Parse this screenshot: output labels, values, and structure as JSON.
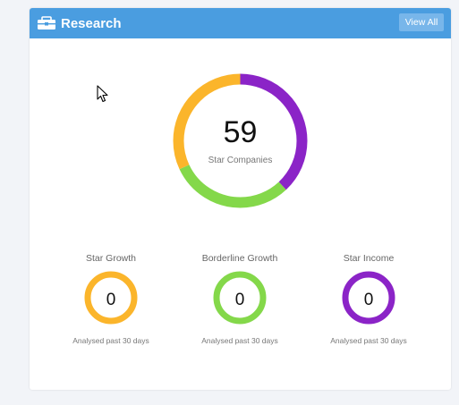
{
  "header": {
    "title": "Research",
    "view_all_label": "View All",
    "icon": "toolbox-icon",
    "background_color": "#4a9de0"
  },
  "summary": {
    "count": "59",
    "label": "Star Companies",
    "segments": [
      {
        "name": "Star Income",
        "color": "#8b24c7",
        "fraction": 0.38
      },
      {
        "name": "Borderline Growth",
        "color": "#84d84a",
        "fraction": 0.3
      },
      {
        "name": "Star Growth",
        "color": "#fbb52b",
        "fraction": 0.32
      }
    ]
  },
  "metrics": [
    {
      "title": "Star Growth",
      "value": "0",
      "subtitle": "Analysed past 30 days",
      "color": "#fbb52b"
    },
    {
      "title": "Borderline Growth",
      "value": "0",
      "subtitle": "Analysed past 30 days",
      "color": "#84d84a"
    },
    {
      "title": "Star Income",
      "value": "0",
      "subtitle": "Analysed past 30 days",
      "color": "#8b24c7"
    }
  ]
}
